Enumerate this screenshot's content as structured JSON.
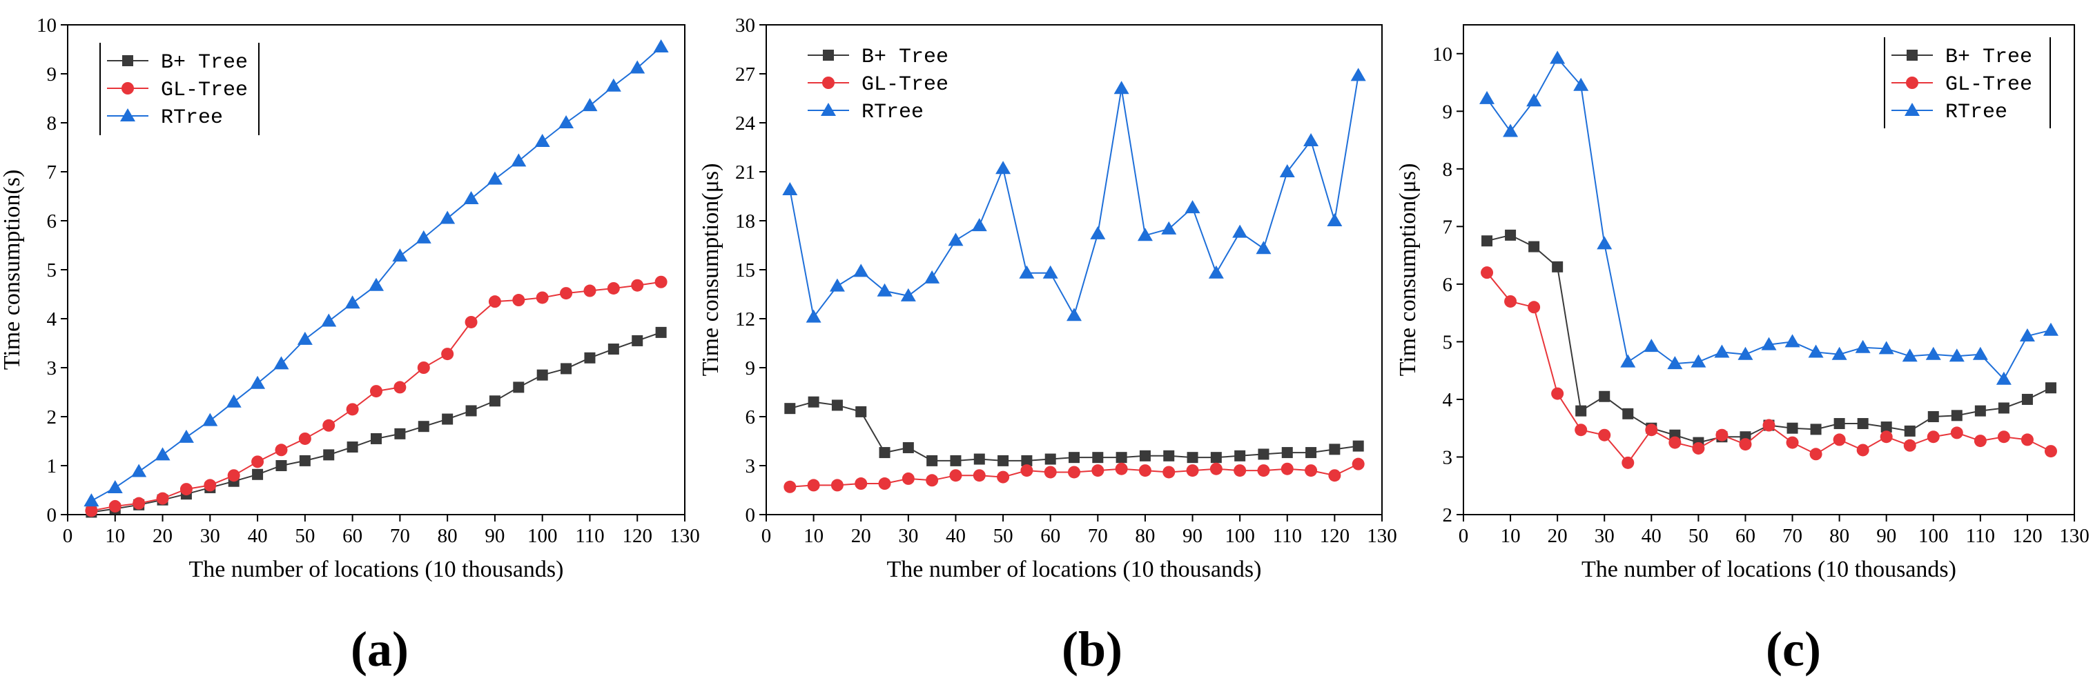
{
  "chart_data": [
    {
      "panel": "(a)",
      "type": "line",
      "xlabel": "The number of locations (10 thousands)",
      "ylabel": "Time consumption(s)",
      "xlim": [
        0,
        130
      ],
      "ylim": [
        0,
        10
      ],
      "xticks": [
        0,
        10,
        20,
        30,
        40,
        50,
        60,
        70,
        80,
        90,
        100,
        110,
        120,
        130
      ],
      "yticks": [
        0,
        1,
        2,
        3,
        4,
        5,
        6,
        7,
        8,
        9,
        10
      ],
      "legend_position": "top-left",
      "legend_framed": true,
      "x": [
        5,
        10,
        15,
        20,
        25,
        30,
        35,
        40,
        45,
        50,
        55,
        60,
        65,
        70,
        75,
        80,
        85,
        90,
        95,
        100,
        105,
        110,
        115,
        120,
        125
      ],
      "series": [
        {
          "name": "B+ Tree",
          "color": "#3a3a3a",
          "marker": "square",
          "values": [
            0.05,
            0.12,
            0.2,
            0.3,
            0.42,
            0.55,
            0.68,
            0.82,
            1.0,
            1.1,
            1.22,
            1.38,
            1.55,
            1.65,
            1.8,
            1.95,
            2.12,
            2.32,
            2.6,
            2.85,
            2.98,
            3.2,
            3.38,
            3.55,
            3.72
          ]
        },
        {
          "name": "GL-Tree",
          "color": "#e8353a",
          "marker": "circle",
          "values": [
            0.08,
            0.17,
            0.23,
            0.33,
            0.52,
            0.6,
            0.8,
            1.08,
            1.32,
            1.55,
            1.82,
            2.15,
            2.52,
            2.6,
            3.0,
            3.28,
            3.93,
            4.35,
            4.38,
            4.43,
            4.52,
            4.57,
            4.62,
            4.68,
            4.75
          ]
        },
        {
          "name": "RTree",
          "color": "#1e6fd9",
          "marker": "triangle",
          "values": [
            0.28,
            0.55,
            0.88,
            1.22,
            1.58,
            1.92,
            2.3,
            2.68,
            3.08,
            3.58,
            3.95,
            4.32,
            4.68,
            5.28,
            5.65,
            6.05,
            6.45,
            6.85,
            7.22,
            7.62,
            8.0,
            8.35,
            8.75,
            9.12,
            9.55
          ]
        }
      ]
    },
    {
      "panel": "(b)",
      "type": "line",
      "xlabel": "The number of locations (10 thousands)",
      "ylabel": "Time consumption(μs)",
      "xlim": [
        0,
        130
      ],
      "ylim": [
        0,
        30
      ],
      "xticks": [
        0,
        10,
        20,
        30,
        40,
        50,
        60,
        70,
        80,
        90,
        100,
        110,
        120,
        130
      ],
      "yticks": [
        0,
        3,
        6,
        9,
        12,
        15,
        18,
        21,
        24,
        27,
        30
      ],
      "legend_position": "top-left",
      "legend_framed": false,
      "x": [
        5,
        10,
        15,
        20,
        25,
        30,
        35,
        40,
        45,
        50,
        55,
        60,
        65,
        70,
        75,
        80,
        85,
        90,
        95,
        100,
        105,
        110,
        115,
        120,
        125
      ],
      "series": [
        {
          "name": "B+ Tree",
          "color": "#3a3a3a",
          "marker": "square",
          "values": [
            6.5,
            6.9,
            6.7,
            6.3,
            3.8,
            4.1,
            3.3,
            3.3,
            3.4,
            3.3,
            3.3,
            3.4,
            3.5,
            3.5,
            3.5,
            3.6,
            3.6,
            3.5,
            3.5,
            3.6,
            3.7,
            3.8,
            3.8,
            4.0,
            4.2
          ]
        },
        {
          "name": "GL-Tree",
          "color": "#e8353a",
          "marker": "circle",
          "values": [
            1.7,
            1.8,
            1.8,
            1.9,
            1.9,
            2.2,
            2.1,
            2.4,
            2.4,
            2.3,
            2.7,
            2.6,
            2.6,
            2.7,
            2.8,
            2.7,
            2.6,
            2.7,
            2.8,
            2.7,
            2.7,
            2.8,
            2.7,
            2.4,
            3.1
          ]
        },
        {
          "name": "RTree",
          "color": "#1e6fd9",
          "marker": "triangle",
          "values": [
            19.9,
            12.1,
            14.0,
            14.9,
            13.7,
            13.4,
            14.5,
            16.8,
            17.7,
            21.2,
            14.8,
            14.8,
            12.2,
            17.2,
            26.1,
            17.1,
            17.5,
            18.8,
            14.8,
            17.3,
            16.3,
            21.0,
            22.9,
            18.0,
            26.9
          ]
        }
      ]
    },
    {
      "panel": "(c)",
      "type": "line",
      "xlabel": "The number of locations (10 thousands)",
      "ylabel": "Time consumption(μs)",
      "xlim": [
        0,
        130
      ],
      "ylim": [
        2,
        10.5
      ],
      "xticks": [
        0,
        10,
        20,
        30,
        40,
        50,
        60,
        70,
        80,
        90,
        100,
        110,
        120,
        130
      ],
      "yticks": [
        2,
        3,
        4,
        5,
        6,
        7,
        8,
        9,
        10
      ],
      "legend_position": "top-right",
      "legend_framed": true,
      "x": [
        5,
        10,
        15,
        20,
        25,
        30,
        35,
        40,
        45,
        50,
        55,
        60,
        65,
        70,
        75,
        80,
        85,
        90,
        95,
        100,
        105,
        110,
        115,
        120,
        125
      ],
      "series": [
        {
          "name": "B+ Tree",
          "color": "#3a3a3a",
          "marker": "square",
          "values": [
            6.75,
            6.85,
            6.65,
            6.3,
            3.8,
            4.05,
            3.75,
            3.5,
            3.38,
            3.25,
            3.35,
            3.35,
            3.55,
            3.5,
            3.48,
            3.58,
            3.58,
            3.52,
            3.45,
            3.7,
            3.72,
            3.8,
            3.85,
            4.0,
            4.2
          ]
        },
        {
          "name": "GL-Tree",
          "color": "#e8353a",
          "marker": "circle",
          "values": [
            6.2,
            5.7,
            5.6,
            4.1,
            3.47,
            3.38,
            2.9,
            3.47,
            3.25,
            3.15,
            3.38,
            3.22,
            3.55,
            3.25,
            3.05,
            3.3,
            3.12,
            3.35,
            3.2,
            3.35,
            3.42,
            3.28,
            3.35,
            3.3,
            3.1
          ]
        },
        {
          "name": "RTree",
          "color": "#1e6fd9",
          "marker": "triangle",
          "values": [
            9.22,
            8.65,
            9.18,
            9.92,
            9.45,
            6.7,
            4.65,
            4.92,
            4.62,
            4.65,
            4.82,
            4.78,
            4.95,
            5.0,
            4.82,
            4.78,
            4.9,
            4.88,
            4.75,
            4.78,
            4.75,
            4.78,
            4.35,
            5.1,
            5.2
          ]
        }
      ]
    }
  ]
}
